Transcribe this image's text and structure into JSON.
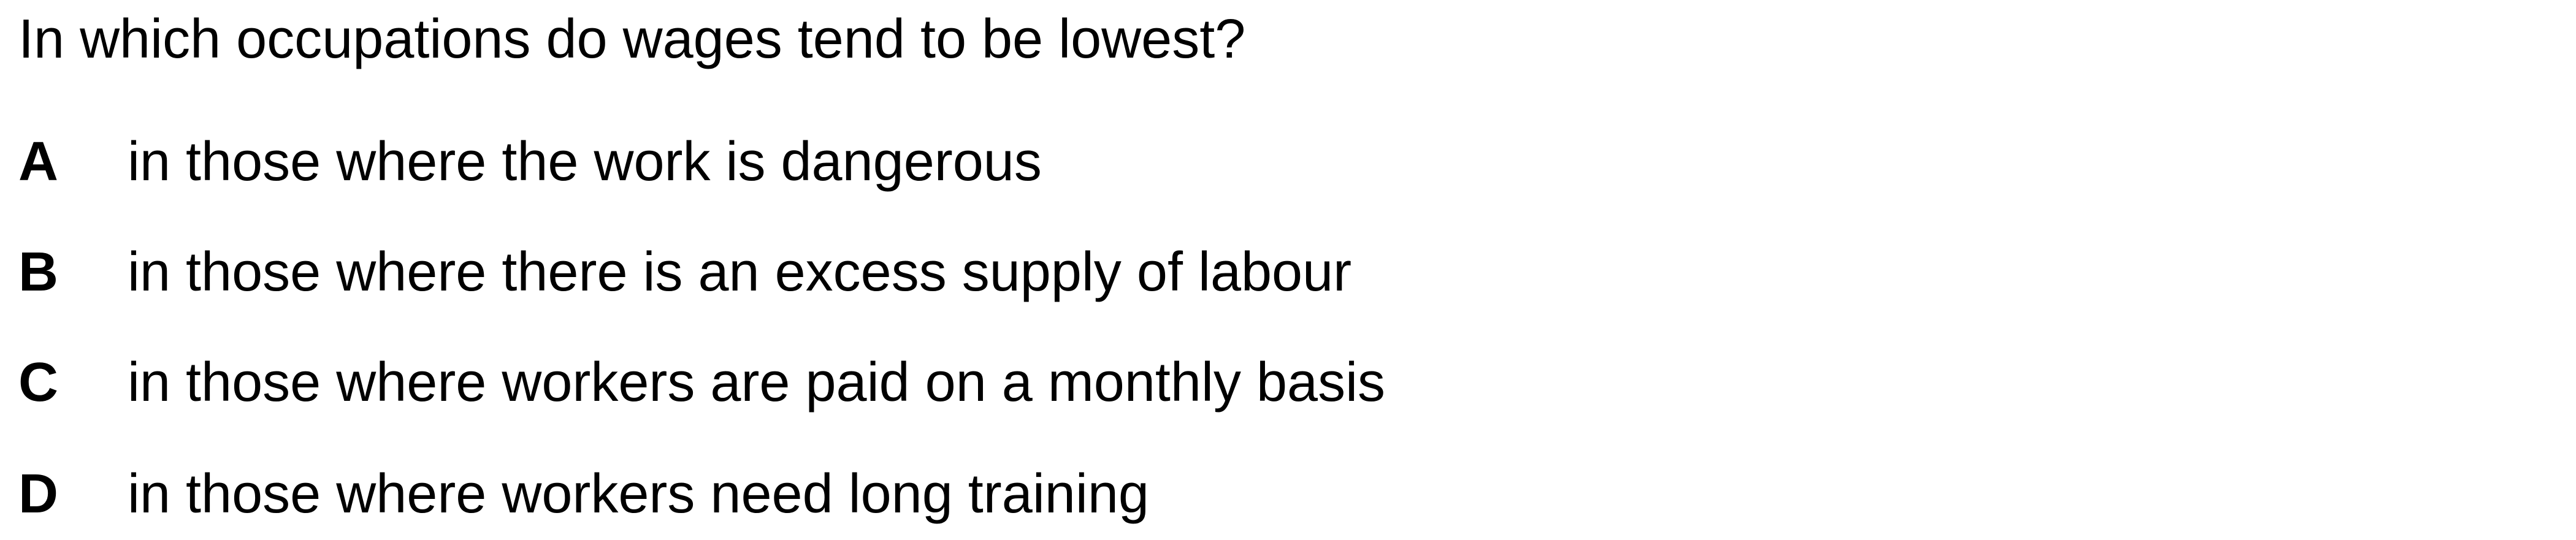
{
  "question": "In which occupations do wages tend to be lowest?",
  "options": [
    {
      "letter": "A",
      "text": "in those where the work is dangerous"
    },
    {
      "letter": "B",
      "text": "in those where there is an excess supply of labour"
    },
    {
      "letter": "C",
      "text": "in those where workers are paid on a monthly basis"
    },
    {
      "letter": "D",
      "text": "in those where workers need long training"
    }
  ]
}
